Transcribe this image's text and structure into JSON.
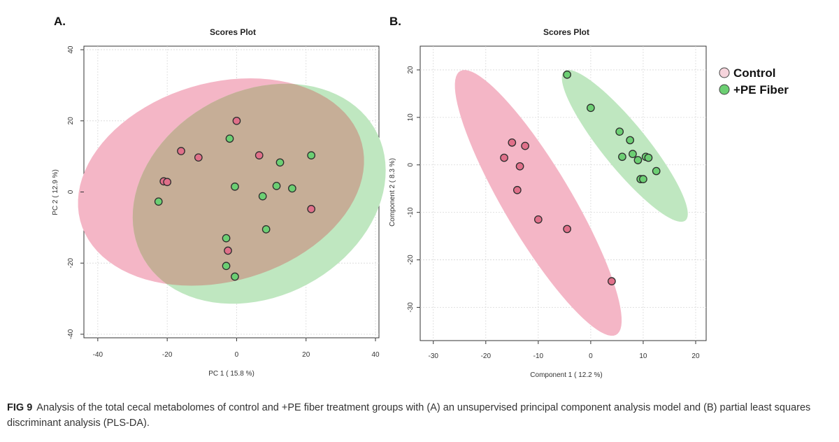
{
  "figure": {
    "caption_label": "FIG 9",
    "caption_text": "Analysis of the total cecal metabolomes of control and +PE fiber treatment groups with (A) an unsupervised principal component analysis model and (B) partial least squares discriminant analysis (PLS-DA)."
  },
  "legend": {
    "items": [
      {
        "label": "Control",
        "color": "#e0708a"
      },
      {
        "label": "+PE Fiber",
        "color": "#6ccf73"
      }
    ]
  },
  "colors": {
    "control_fill": "#e0708a",
    "pe_fill": "#6ccf73",
    "control_ellipse": "#f4b6c6",
    "pe_ellipse": "#bfe7c0",
    "overlap": "#c6ae97",
    "marker_stroke": "#2d2d2d"
  },
  "chart_data": [
    {
      "panel": "A.",
      "type": "scatter",
      "title": "Scores Plot",
      "xlabel": "PC 1 ( 15.8 %)",
      "ylabel": "PC 2 ( 12.9 %)",
      "xlim": [
        -44,
        41
      ],
      "ylim": [
        -41,
        41
      ],
      "xticks": [
        -40,
        -20,
        0,
        20,
        40
      ],
      "yticks": [
        -40,
        -20,
        0,
        20,
        40
      ],
      "grid": true,
      "ellipses": [
        {
          "series": "Control",
          "cx": -4.5,
          "cy": 2.8,
          "rx": 42,
          "ry": 28,
          "angle": 15
        },
        {
          "series": "+PE Fiber",
          "cx": 6.5,
          "cy": -0.5,
          "rx": 38,
          "ry": 29,
          "angle": 26
        }
      ],
      "series": [
        {
          "name": "Control",
          "points": [
            [
              0,
              20
            ],
            [
              -16,
              11.5
            ],
            [
              -11,
              9.7
            ],
            [
              6.5,
              10.3
            ],
            [
              -21,
              3
            ],
            [
              -20,
              2.8
            ],
            [
              21.5,
              -4.8
            ],
            [
              -2.5,
              -16.5
            ]
          ]
        },
        {
          "name": "+PE Fiber",
          "points": [
            [
              -2,
              15
            ],
            [
              21.5,
              10.3
            ],
            [
              12.5,
              8.3
            ],
            [
              -0.5,
              1.5
            ],
            [
              11.5,
              1.7
            ],
            [
              16,
              1
            ],
            [
              7.5,
              -1.2
            ],
            [
              -22.5,
              -2.7
            ],
            [
              8.5,
              -10.5
            ],
            [
              -3,
              -13
            ],
            [
              -3,
              -20.8
            ],
            [
              -0.5,
              -23.8
            ]
          ]
        }
      ]
    },
    {
      "panel": "B.",
      "type": "scatter",
      "title": "Scores Plot",
      "xlabel": "Component 1 ( 12.2 %)",
      "ylabel": "Component 2 ( 8.3 %)",
      "xlim": [
        -32.5,
        22
      ],
      "ylim": [
        -37,
        25
      ],
      "xticks": [
        -30,
        -20,
        -10,
        0,
        10,
        20
      ],
      "yticks": [
        -30,
        -20,
        -10,
        0,
        10,
        20
      ],
      "grid": true,
      "ellipses": [
        {
          "series": "Control",
          "cx": -10,
          "cy": -8,
          "rx": 31.5,
          "ry": 6.6,
          "angle": -62
        },
        {
          "series": "+PE Fiber",
          "cx": 6.5,
          "cy": 4,
          "rx": 19.5,
          "ry": 4.4,
          "angle": -54
        }
      ],
      "series": [
        {
          "name": "Control",
          "points": [
            [
              -15,
              4.7
            ],
            [
              -12.5,
              4
            ],
            [
              -16.5,
              1.5
            ],
            [
              -13.5,
              -0.3
            ],
            [
              -14,
              -5.3
            ],
            [
              -10,
              -11.5
            ],
            [
              -4.5,
              -13.5
            ],
            [
              4,
              -24.5
            ]
          ]
        },
        {
          "name": "+PE Fiber",
          "points": [
            [
              -4.5,
              19
            ],
            [
              0,
              12
            ],
            [
              5.5,
              7
            ],
            [
              7.5,
              5.2
            ],
            [
              6,
              1.7
            ],
            [
              8,
              2.3
            ],
            [
              9,
              1
            ],
            [
              10.5,
              1.7
            ],
            [
              11,
              1.5
            ],
            [
              12.5,
              -1.3
            ],
            [
              9.5,
              -3
            ],
            [
              10,
              -3
            ]
          ]
        }
      ]
    }
  ]
}
